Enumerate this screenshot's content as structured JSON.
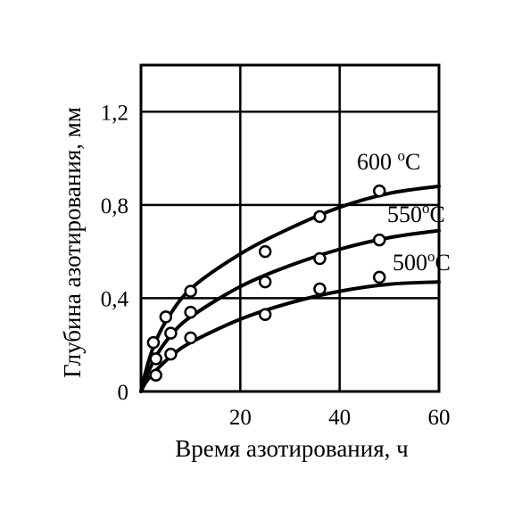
{
  "chart_data": {
    "type": "line",
    "xlabel": "Время азотирования, ч",
    "ylabel": "Глубина азотирования, мм",
    "xlim": [
      0,
      60
    ],
    "ylim": [
      0,
      1.4
    ],
    "xticks": [
      20,
      40,
      60
    ],
    "xtick_labels": [
      "20",
      "40",
      "60"
    ],
    "yticks": [
      0,
      0.4,
      0.8,
      1.2
    ],
    "ytick_labels": [
      "0",
      "0,4",
      "0,8",
      "1,2"
    ],
    "grid": true,
    "series": [
      {
        "name": "600 °C",
        "label_parts": [
          "600 ",
          "o",
          "C"
        ],
        "points": [
          [
            2.5,
            0.21
          ],
          [
            5,
            0.32
          ],
          [
            10,
            0.43
          ],
          [
            25,
            0.6
          ],
          [
            36,
            0.75
          ],
          [
            48,
            0.86
          ]
        ],
        "curve": [
          [
            0,
            0
          ],
          [
            1,
            0.09
          ],
          [
            2.5,
            0.19
          ],
          [
            5,
            0.3
          ],
          [
            10,
            0.44
          ],
          [
            20,
            0.59
          ],
          [
            30,
            0.7
          ],
          [
            40,
            0.79
          ],
          [
            50,
            0.85
          ],
          [
            60,
            0.88
          ]
        ]
      },
      {
        "name": "550°C",
        "label_parts": [
          "550",
          "o",
          "C"
        ],
        "points": [
          [
            3,
            0.14
          ],
          [
            6,
            0.25
          ],
          [
            10,
            0.34
          ],
          [
            25,
            0.47
          ],
          [
            36,
            0.57
          ],
          [
            48,
            0.65
          ]
        ],
        "curve": [
          [
            0,
            0
          ],
          [
            1,
            0.06
          ],
          [
            3,
            0.15
          ],
          [
            6,
            0.24
          ],
          [
            10,
            0.32
          ],
          [
            20,
            0.45
          ],
          [
            30,
            0.54
          ],
          [
            40,
            0.61
          ],
          [
            50,
            0.66
          ],
          [
            60,
            0.69
          ]
        ]
      },
      {
        "name": "500°C",
        "label_parts": [
          "500",
          "o",
          "C"
        ],
        "points": [
          [
            3,
            0.07
          ],
          [
            6,
            0.16
          ],
          [
            10,
            0.23
          ],
          [
            25,
            0.33
          ],
          [
            36,
            0.44
          ],
          [
            48,
            0.49
          ]
        ],
        "curve": [
          [
            0,
            0
          ],
          [
            1,
            0.04
          ],
          [
            3,
            0.09
          ],
          [
            6,
            0.15
          ],
          [
            10,
            0.21
          ],
          [
            20,
            0.31
          ],
          [
            30,
            0.38
          ],
          [
            40,
            0.43
          ],
          [
            50,
            0.46
          ],
          [
            60,
            0.47
          ]
        ]
      }
    ]
  }
}
